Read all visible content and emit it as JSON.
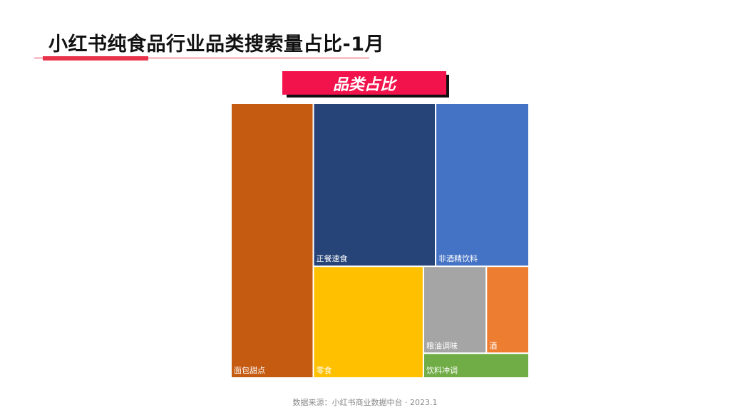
{
  "header": {
    "title": "小红书纯食品行业品类搜索量占比-1月"
  },
  "banner": {
    "label": "品类占比"
  },
  "footer": {
    "source": "数据来源：小红书商业数据中台 · 2023.1"
  },
  "chart_data": {
    "type": "treemap",
    "items": [
      {
        "name": "面包甜点",
        "value": 26.9,
        "color": "#c55a11"
      },
      {
        "name": "正餐速食",
        "value": 23.7,
        "color": "#264478"
      },
      {
        "name": "非酒精饮料",
        "value": 18.1,
        "color": "#4472c4"
      },
      {
        "name": "零食",
        "value": 14.6,
        "color": "#ffc000"
      },
      {
        "name": "粮油调味",
        "value": 6.5,
        "color": "#a5a5a5"
      },
      {
        "name": "酒",
        "value": 4.4,
        "color": "#ed7d31"
      },
      {
        "name": "饮料冲调",
        "value": 3.1,
        "color": "#70ad47"
      }
    ]
  }
}
